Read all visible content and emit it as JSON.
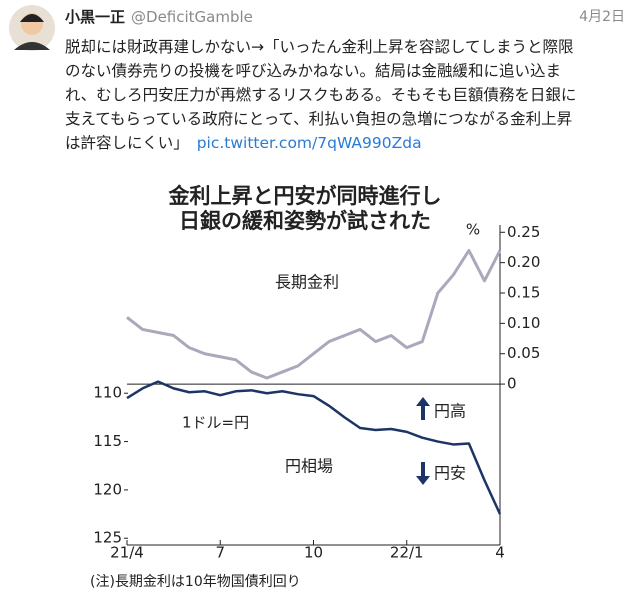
{
  "tweet": {
    "name": "小黒一正",
    "handle": "@DeficitGamble",
    "date": "4月2日",
    "text": [
      "脱却には財政再建しかない→「いったん金利上昇を容認してしまうと際限",
      "のない債券売りの投機を呼び込みかねない。結局は金融緩和に追い込ま",
      "れ、むしろ円安圧力が再燃するリスクもある。そもそも巨額債務を日銀に",
      "支えてもらっている政府にとって、利払い負担の急増につながる金利上昇",
      "は許容しにくい」"
    ],
    "link": "pic.twitter.com/7qWA990Zda"
  },
  "chart_data": {
    "type": "line",
    "title": [
      "金利上昇と円安が同時進行し",
      "日銀の緩和姿勢が試された"
    ],
    "x": [
      0,
      0.5,
      1,
      1.5,
      2,
      2.5,
      3,
      3.5,
      4,
      4.5,
      5,
      5.5,
      6,
      6.5,
      7,
      7.5,
      8,
      8.5,
      9,
      9.5,
      10,
      10.5,
      11,
      11.5,
      12
    ],
    "xlim": [
      0,
      12
    ],
    "xticks": [
      {
        "value": 0,
        "label": "21/4"
      },
      {
        "value": 3,
        "label": "7"
      },
      {
        "value": 6,
        "label": "10"
      },
      {
        "value": 9,
        "label": "22/1"
      },
      {
        "value": 12,
        "label": "4"
      }
    ],
    "ylim": [
      125.7,
      92.6
    ],
    "yticks": [
      110,
      115,
      120,
      125
    ],
    "y2lim": [
      -0.265,
      0.262
    ],
    "y2ticks": [
      0,
      0.05,
      {
        "value": 0.1,
        "label": "0.10"
      },
      0.15,
      {
        "value": 0.2,
        "label": "0.20"
      },
      0.25
    ],
    "y2_unit": "%",
    "series": [
      {
        "name": "長期金利",
        "color": "#a9a9bb",
        "axis": "y2",
        "values": [
          0.11,
          0.09,
          0.085,
          0.08,
          0.06,
          0.05,
          0.045,
          0.04,
          0.02,
          0.01,
          0.02,
          0.03,
          0.05,
          0.07,
          0.08,
          0.09,
          0.07,
          0.08,
          0.06,
          0.07,
          0.15,
          0.18,
          0.22,
          0.17,
          0.22
        ]
      },
      {
        "name": "円相場",
        "color": "#1c3566",
        "values": [
          110.5,
          109.5,
          108.8,
          109.5,
          109.9,
          109.8,
          110.2,
          109.8,
          109.7,
          110,
          109.8,
          110.1,
          110.3,
          111.3,
          112.5,
          113.6,
          113.8,
          113.7,
          114,
          114.6,
          115,
          115.3,
          115.2,
          119,
          122.5
        ]
      }
    ],
    "annotations": [
      "1ドル=円",
      "円高",
      "円安"
    ],
    "note": "(注)長期金利は10年物国債利回り"
  }
}
